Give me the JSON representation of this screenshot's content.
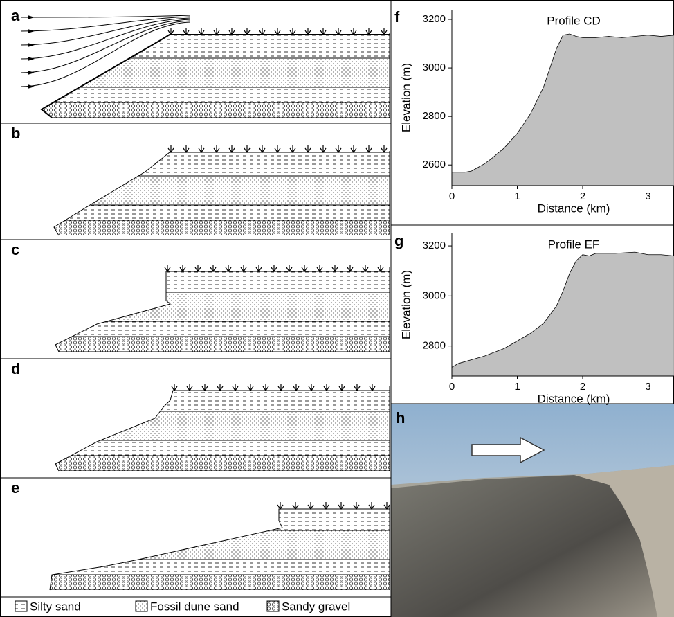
{
  "panels": [
    {
      "label": "a"
    },
    {
      "label": "b"
    },
    {
      "label": "c"
    },
    {
      "label": "d"
    },
    {
      "label": "e"
    }
  ],
  "legend": [
    "Silty sand",
    "Fossil dune sand",
    "Sandy gravel"
  ],
  "chart_data": [
    {
      "type": "area",
      "label": "f",
      "title": "Profile CD",
      "x_label": "Distance (km)",
      "y_label": "Elevation (m)",
      "x": [
        0,
        0.2,
        0.3,
        0.4,
        0.5,
        0.6,
        0.8,
        1.0,
        1.2,
        1.4,
        1.5,
        1.6,
        1.7,
        1.8,
        1.9,
        2.0,
        2.2,
        2.4,
        2.6,
        2.8,
        3.0,
        3.2,
        3.4
      ],
      "values": [
        2570,
        2570,
        2575,
        2590,
        2605,
        2625,
        2670,
        2730,
        2810,
        2920,
        3000,
        3080,
        3135,
        3140,
        3130,
        3125,
        3125,
        3130,
        3125,
        3130,
        3135,
        3130,
        3135
      ],
      "color": "#c0c0c0",
      "xlim": [
        0,
        3.4
      ],
      "ylim": [
        2515,
        3240
      ],
      "xticks": [
        0,
        1,
        2,
        3
      ],
      "yticks": [
        2600,
        2800,
        3000,
        3200
      ]
    },
    {
      "type": "area",
      "label": "g",
      "title": "Profile EF",
      "x_label": "Distance (km)",
      "y_label": "Elevation (m)",
      "x": [
        0,
        0.1,
        0.3,
        0.5,
        0.8,
        1.0,
        1.2,
        1.4,
        1.6,
        1.7,
        1.8,
        1.9,
        2.0,
        2.1,
        2.2,
        2.5,
        2.8,
        3.0,
        3.2,
        3.4
      ],
      "values": [
        2715,
        2730,
        2745,
        2760,
        2790,
        2820,
        2850,
        2890,
        2960,
        3020,
        3090,
        3140,
        3165,
        3160,
        3170,
        3170,
        3175,
        3165,
        3165,
        3160
      ],
      "color": "#c0c0c0",
      "xlim": [
        0,
        3.4
      ],
      "ylim": [
        2680,
        3250
      ],
      "xticks": [
        0,
        1,
        2,
        3
      ],
      "yticks": [
        2800,
        3000,
        3200
      ]
    }
  ],
  "photo": {
    "label": "h"
  }
}
